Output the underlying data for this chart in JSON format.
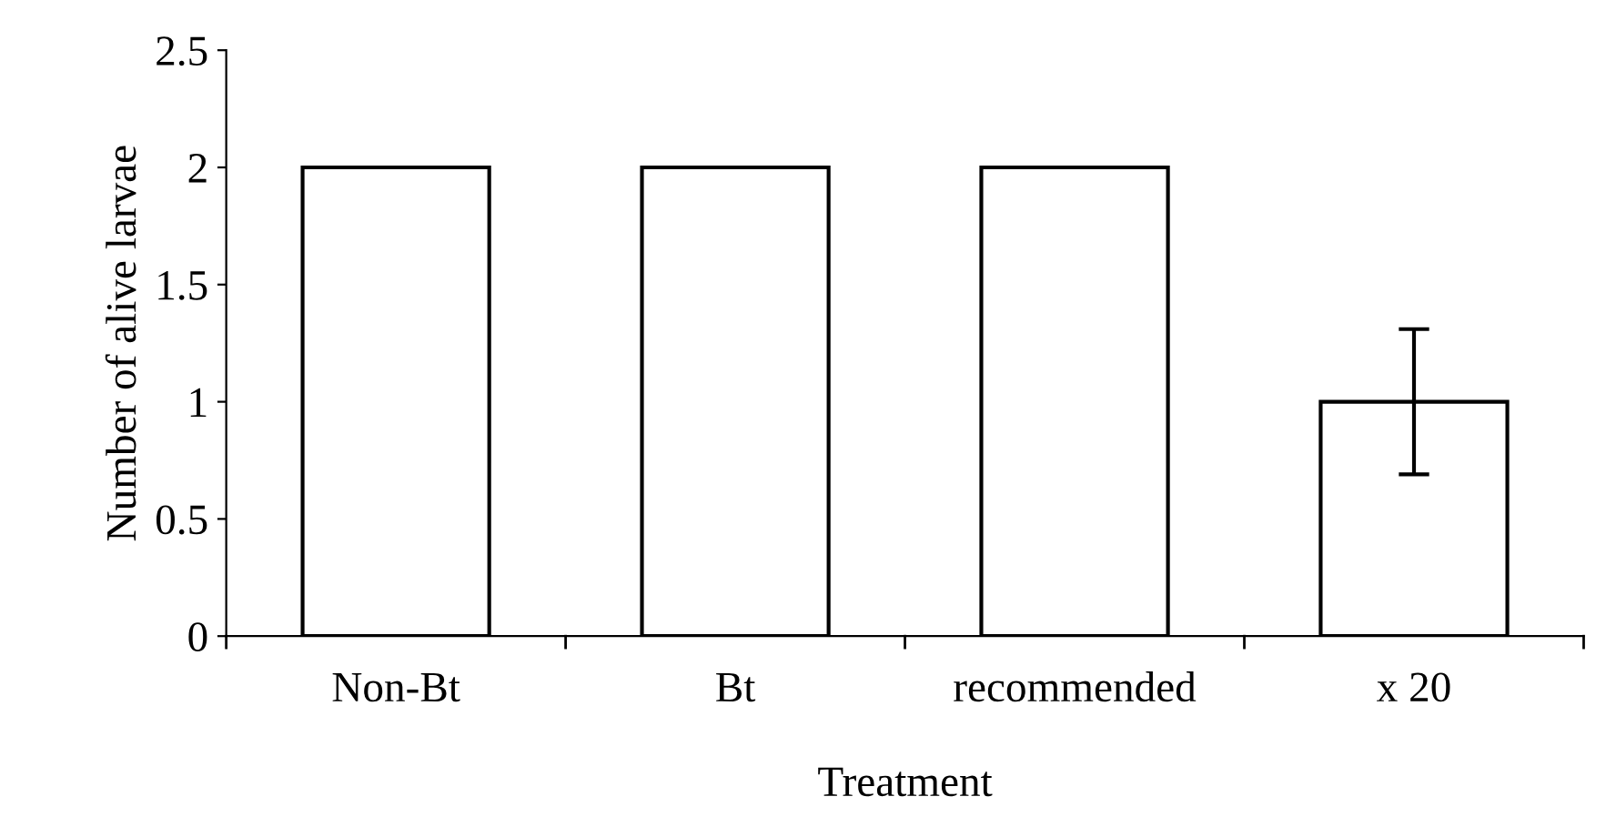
{
  "chart_data": {
    "type": "bar",
    "xlabel": "Treatment",
    "ylabel": "Number of alive larvae",
    "categories": [
      "Non-Bt",
      "Bt",
      "recommended",
      "x 20"
    ],
    "values": [
      2,
      2,
      2,
      1
    ],
    "errors": [
      null,
      null,
      null,
      0.31
    ],
    "color": "#ffffff",
    "ylim": [
      0,
      2.5
    ],
    "yticks": [
      0,
      0.5,
      1,
      1.5,
      2,
      2.5
    ],
    "grid": false
  }
}
